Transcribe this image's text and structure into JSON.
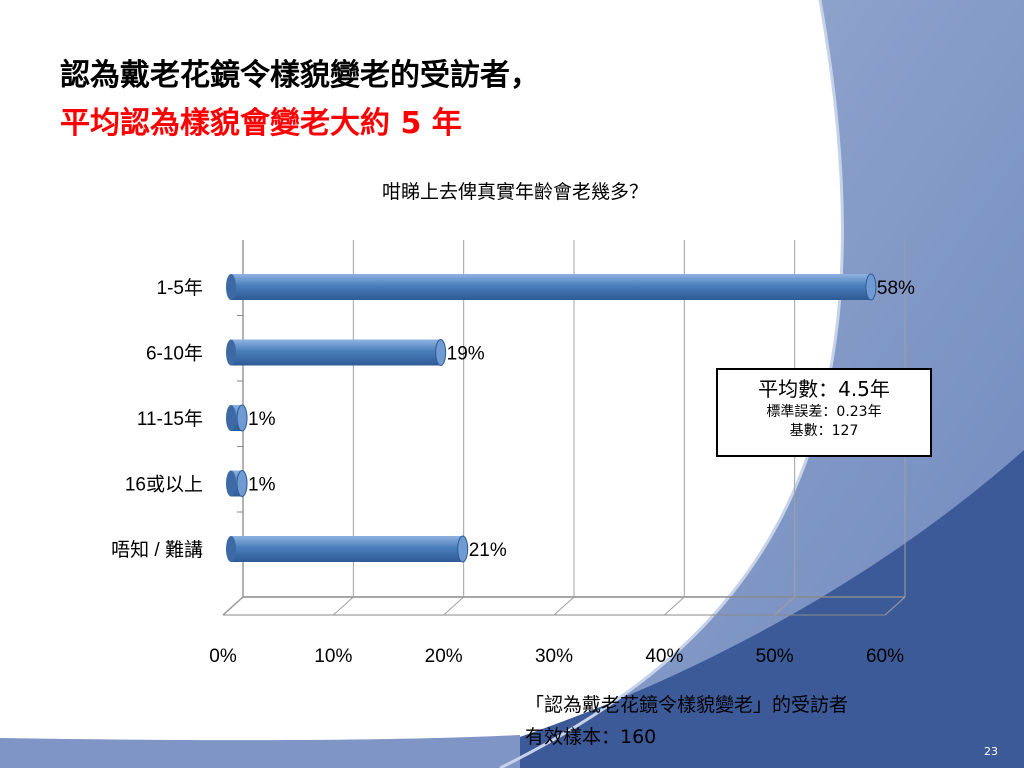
{
  "slide": {
    "title_line1": "認為戴老花鏡令樣貌變老的受訪者，",
    "title_line2": "平均認為樣貌會變老大約 5 年",
    "page_number": "23",
    "colors": {
      "title_highlight": "#ff0000",
      "bar": "#4a7ebb",
      "background_accent": "#3c5a98"
    }
  },
  "chart_data": {
    "type": "bar",
    "orientation": "horizontal",
    "title": "咁睇上去俾真實年齡會老幾多？",
    "categories": [
      "1-5年",
      "6-10年",
      "11-15年",
      "16或以上",
      "唔知 / 難講"
    ],
    "values": [
      58,
      19,
      1,
      1,
      21
    ],
    "value_labels": [
      "58%",
      "19%",
      "1%",
      "1%",
      "21%"
    ],
    "x_ticks": [
      "0%",
      "10%",
      "20%",
      "30%",
      "40%",
      "50%",
      "60%"
    ],
    "xlim": [
      0,
      60
    ],
    "grid": true,
    "style": "3d-cylinder"
  },
  "stats": {
    "mean": "平均數：4.5年",
    "std_error": "標準誤差：0.23年",
    "base": "基數：127"
  },
  "footnote": {
    "line1": "「認為戴老花鏡令樣貌變老」的受訪者",
    "line2": "有效樣本：160"
  }
}
